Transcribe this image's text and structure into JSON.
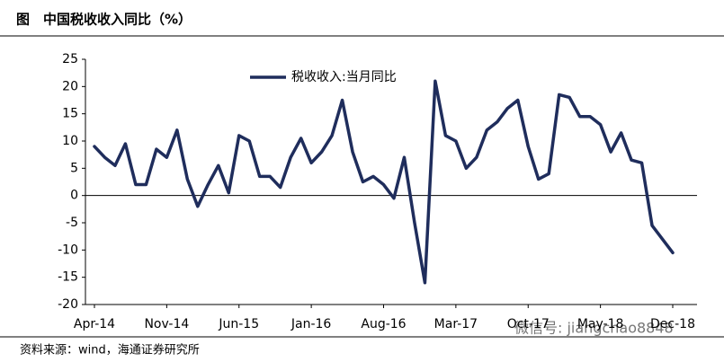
{
  "chart_data": {
    "type": "line",
    "title": "图　中国税收收入同比（%）",
    "source": "资料来源：wind，海通证券研究所",
    "watermark": "微信号: jiangchao8848",
    "categories": [
      "Apr-14",
      null,
      null,
      null,
      null,
      null,
      null,
      "Nov-14",
      null,
      null,
      null,
      null,
      null,
      null,
      "Jun-15",
      null,
      null,
      null,
      null,
      null,
      null,
      "Jan-16",
      null,
      null,
      null,
      null,
      null,
      null,
      "Aug-16",
      null,
      null,
      null,
      null,
      null,
      null,
      "Mar-17",
      null,
      null,
      null,
      null,
      null,
      null,
      "Oct-17",
      null,
      null,
      null,
      null,
      null,
      null,
      "May-18",
      null,
      null,
      null,
      null,
      null,
      null,
      "Dec-18"
    ],
    "series": [
      {
        "name": "税收收入:当月同比",
        "color": "#1f2d5c",
        "values": [
          9,
          7,
          5.5,
          9.5,
          2,
          2,
          8.5,
          7,
          12,
          3,
          -2,
          2,
          5.5,
          0.5,
          11,
          10,
          3.5,
          3.5,
          1.5,
          7,
          10.5,
          6,
          8,
          11,
          17.5,
          8,
          2.5,
          3.5,
          2,
          -0.5,
          7,
          -5,
          -16,
          21,
          11,
          10,
          5,
          7,
          12,
          13.5,
          16,
          17.5,
          9,
          3,
          4,
          18.5,
          18,
          14.5,
          14.5,
          13,
          8,
          11.5,
          6.5,
          6,
          -5.5,
          -8,
          -10.5
        ]
      }
    ],
    "ylim": [
      -20,
      25
    ],
    "yticks": [
      -20,
      -15,
      -10,
      -5,
      0,
      5,
      10,
      15,
      20,
      25
    ],
    "legend": "top"
  }
}
